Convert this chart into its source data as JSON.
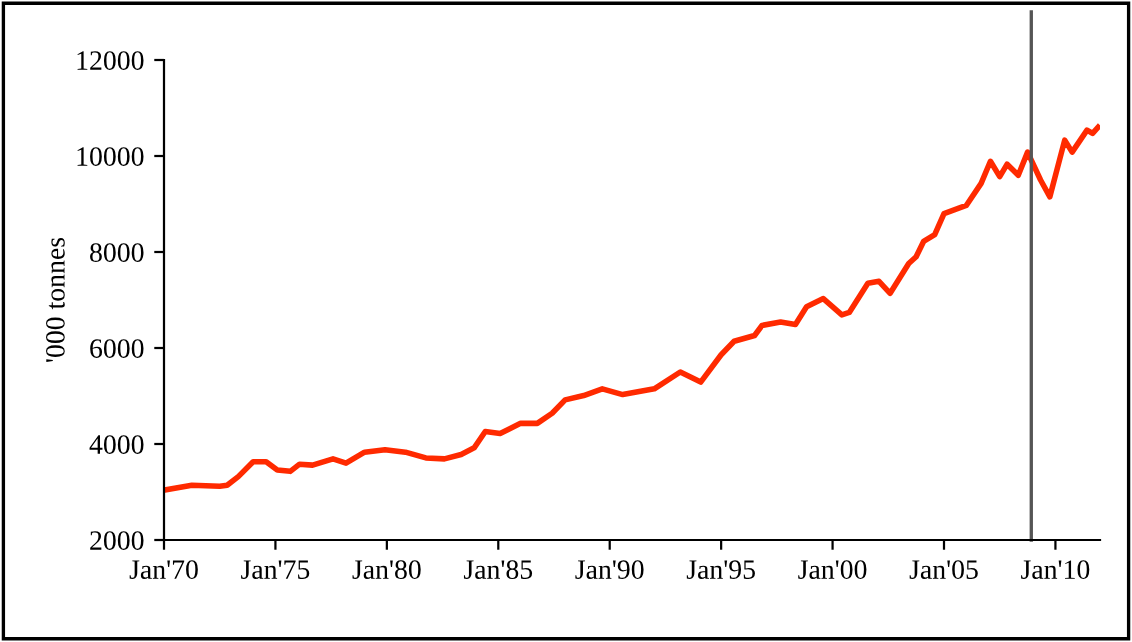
{
  "chart_data": {
    "type": "line",
    "ylabel": "'000 tonnes",
    "x": [
      "1970-01",
      "1971-04",
      "1972-07",
      "1972-11",
      "1973-05",
      "1974-01",
      "1974-08",
      "1975-02",
      "1975-09",
      "1976-02",
      "1976-09",
      "1977-08",
      "1978-03",
      "1979-01",
      "1979-12",
      "1980-11",
      "1981-10",
      "1982-08",
      "1983-05",
      "1983-12",
      "1984-06",
      "1985-02",
      "1986-01",
      "1986-10",
      "1987-06",
      "1988-01",
      "1988-11",
      "1989-09",
      "1990-08",
      "1992-01",
      "1993-03",
      "1994-02",
      "1995-01",
      "1995-08",
      "1996-07",
      "1996-11",
      "1997-09",
      "1998-05",
      "1998-11",
      "1999-08",
      "2000-06",
      "2000-10",
      "2001-08",
      "2002-02",
      "2002-08",
      "2003-06",
      "2003-10",
      "2004-02",
      "2004-08",
      "2005-01",
      "2006-01",
      "2006-09",
      "2007-02",
      "2007-07",
      "2007-11",
      "2008-05",
      "2008-10",
      "2009-05",
      "2009-10",
      "2010-06",
      "2010-10",
      "2011-06",
      "2011-09",
      "2011-12"
    ],
    "series": [
      {
        "color": "#ff2a00",
        "values": [
          3040,
          3140,
          3120,
          3140,
          3320,
          3630,
          3630,
          3460,
          3430,
          3580,
          3560,
          3690,
          3600,
          3830,
          3880,
          3830,
          3710,
          3690,
          3780,
          3920,
          4260,
          4220,
          4430,
          4430,
          4640,
          4920,
          5010,
          5150,
          5030,
          5150,
          5500,
          5290,
          5860,
          6140,
          6260,
          6470,
          6540,
          6490,
          6860,
          7030,
          6690,
          6740,
          7350,
          7390,
          7140,
          7760,
          7900,
          8220,
          8360,
          8800,
          8970,
          9430,
          9890,
          9570,
          9830,
          9600,
          10080,
          9500,
          9150,
          10330,
          10080,
          10540,
          10470,
          10600
        ]
      }
    ],
    "xlim": [
      "1970-01",
      "2012-01"
    ],
    "xticks": [
      {
        "value": "1970-01",
        "label": "Jan'70"
      },
      {
        "value": "1975-01",
        "label": "Jan'75"
      },
      {
        "value": "1980-01",
        "label": "Jan'80"
      },
      {
        "value": "1985-01",
        "label": "Jan'85"
      },
      {
        "value": "1990-01",
        "label": "Jan'90"
      },
      {
        "value": "1995-01",
        "label": "Jan'95"
      },
      {
        "value": "2000-01",
        "label": "Jan'00"
      },
      {
        "value": "2005-01",
        "label": "Jan'05"
      },
      {
        "value": "2010-01",
        "label": "Jan'10"
      }
    ],
    "ylim": [
      2000,
      12000
    ],
    "yticks": [
      2000,
      4000,
      6000,
      8000,
      10000,
      12000
    ],
    "ref_lines": [
      {
        "axis": "x",
        "value": "2008-12",
        "color": "#555555"
      }
    ],
    "grid": false,
    "marker": "none",
    "line_style": "solid"
  }
}
